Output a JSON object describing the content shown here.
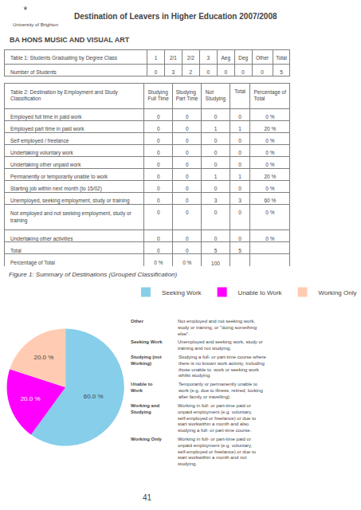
{
  "title": "Destination of Leavers in Higher Education 2007/2008",
  "subtitle": "BA HONS MUSIC AND VISUAL ART",
  "annotations": [
    "*",
    "University of Brighton",
    "41"
  ],
  "chart_data": [
    {
      "type": "table",
      "columns": [
        "Table 1: Students Graduating by Degree Class",
        "1",
        "2/1",
        "2/2",
        "3",
        "Aeg",
        "Deg",
        "Other",
        "Total"
      ],
      "rows": [
        [
          "Number of Students",
          "0",
          "3",
          "2",
          "0",
          "0",
          "0",
          "0",
          "5"
        ]
      ]
    },
    {
      "type": "table",
      "columns": [
        "Table 2: Destination by Employment and Study Classification",
        "Studying\nFull Time",
        "Studying\nPart Time",
        "Not\nStudying",
        "Total",
        "Percentage of\nTotal"
      ],
      "rows": [
        [
          "Employed full time in paid work",
          "0",
          "0",
          "0",
          "0",
          "0 %"
        ],
        [
          "Employed part time in paid work",
          "0",
          "0",
          "1",
          "1",
          "20 %"
        ],
        [
          "Self employed / freelance",
          "0",
          "0",
          "0",
          "0",
          "0 %"
        ],
        [
          "Undertaking voluntary work",
          "0",
          "0",
          "0",
          "0",
          "0 %"
        ],
        [
          "Undertaking other unpaid work",
          "0",
          "0",
          "0",
          "0",
          "0 %"
        ],
        [
          "Permanently or temporarily unable to work",
          "0",
          "0",
          "1",
          "1",
          "20 %"
        ],
        [
          "Starting job within next month (to 15/02)",
          "0",
          "0",
          "0",
          "0",
          "0 %"
        ],
        [
          "Unemployed, seeking employment, study or training",
          "0",
          "0",
          "3",
          "3",
          "60 %"
        ],
        [
          "Not employed and not seeking employment, study or training",
          "0",
          "0",
          "0",
          "0",
          "0 %"
        ],
        [
          "Undertaking other activities",
          "0",
          "0",
          "0",
          "0",
          "0 %"
        ],
        [
          "Total",
          "0",
          "0",
          "5",
          "5",
          ""
        ],
        [
          "Percentage of Total",
          "0 %",
          "0 %",
          "100 %",
          "",
          ""
        ]
      ]
    },
    {
      "type": "pie",
      "title": "Figure 1: Summary of Destinations (Grouped Classification)",
      "categories": [
        "Seeking Work",
        "Unable to Work",
        "Working Only"
      ],
      "values": [
        60.0,
        20.0,
        20.0
      ],
      "value_labels": [
        "60.0 %",
        "20.0 %",
        "20.0 %"
      ],
      "colors": [
        "#87CEEB",
        "#FF00FF",
        "#FFCCB3"
      ],
      "data_labels": true,
      "legend": "upper right"
    },
    {
      "type": "definitions",
      "rows": [
        [
          "Other",
          "Not employed and not seeking work,\nstudy or training, or \"doing something\nelse\"."
        ],
        [
          "Seeking Work",
          "Unemployed and seeking work, study or\ntraining and not studying."
        ],
        [
          "Studying (not\nWorking)",
          "Studying a full- or part-time course where\nthere is no known work activity, including\nthose unable to  work or seeking work\nwhilst studying."
        ],
        [
          "Unable to\nWork",
          "Temporarily or permanently unable to\nwork (e.g. due to illness, retired, looking\nafter family or travelling)."
        ],
        [
          "Working and\nStudying",
          "Working in full- or part-time paid or\nunpaid employment (e.g. voluntary,\nself-employed or freelance) or due to\nstart workwithin a month and also\nstudying a full- or part-time course."
        ],
        [
          "Working Only",
          "Working in full- or part-time paid or\nunpaid employment (e.g. voluntary,\nself-employed or freelance) or due to\nstart workwithin a month and not\nstudying."
        ]
      ]
    }
  ]
}
